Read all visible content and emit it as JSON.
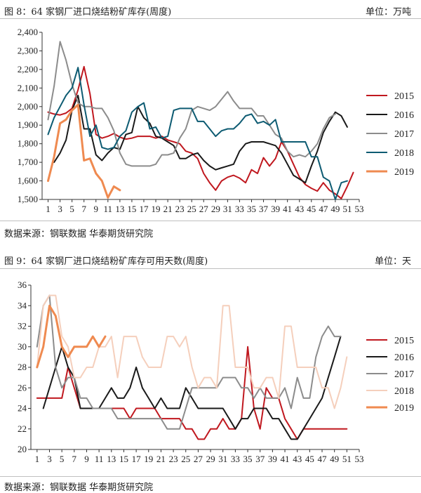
{
  "figure1": {
    "title": "图 8：64 家钢厂进口烧结粉矿库存(周度)",
    "unit": "单位：万吨",
    "source": "数据来源：钢联数据 华泰期货研究院"
  },
  "figure2": {
    "title": "图 9：64 家钢厂进口烧结粉矿库存可用天数(周度)",
    "unit": "单位：天",
    "source": "数据来源：钢联数据 华泰期货研究院"
  },
  "chart_data": [
    {
      "type": "line",
      "title": "64 家钢厂进口烧结粉矿库存(周度)",
      "x": [
        1,
        2,
        3,
        4,
        5,
        6,
        7,
        8,
        9,
        10,
        11,
        12,
        13,
        14,
        15,
        16,
        17,
        18,
        19,
        20,
        21,
        22,
        23,
        24,
        25,
        26,
        27,
        28,
        29,
        30,
        31,
        32,
        33,
        34,
        35,
        36,
        37,
        38,
        39,
        40,
        41,
        42,
        43,
        44,
        45,
        46,
        47,
        48,
        49,
        50,
        51,
        52
      ],
      "xticks": [
        1,
        3,
        5,
        7,
        9,
        11,
        13,
        15,
        17,
        19,
        21,
        23,
        25,
        27,
        29,
        31,
        33,
        35,
        37,
        39,
        41,
        43,
        45,
        47,
        49,
        51,
        53
      ],
      "xlim": [
        0,
        53
      ],
      "ylim": [
        1500,
        2400
      ],
      "yticks": [
        1500,
        1600,
        1700,
        1800,
        1900,
        2000,
        2100,
        2200,
        2300,
        2400
      ],
      "ytick_labels": [
        "1,500",
        "1,600",
        "1,700",
        "1,800",
        "1,900",
        "2,000",
        "2,100",
        "2,200",
        "2,300",
        "2,400"
      ],
      "legend_position": "right",
      "grid": false,
      "series": [
        {
          "name": "2015",
          "color": "#c0181f",
          "width": 2,
          "values": [
            1970,
            1960,
            1955,
            1965,
            1990,
            2090,
            2215,
            2070,
            1850,
            1830,
            1840,
            1855,
            1835,
            1825,
            1830,
            1840,
            1840,
            1840,
            1830,
            1840,
            1820,
            1810,
            1800,
            1760,
            1750,
            1720,
            1640,
            1590,
            1550,
            1600,
            1620,
            1630,
            1615,
            1590,
            1660,
            1640,
            1725,
            1680,
            1720,
            1810,
            1760,
            1690,
            1620,
            1580,
            1560,
            1545,
            1590,
            1550,
            1530,
            1505,
            1570,
            1645
          ]
        },
        {
          "name": "2016",
          "color": "#1a1a1a",
          "width": 2,
          "values": [
            null,
            1700,
            1750,
            1820,
            1980,
            2060,
            1880,
            1880,
            1740,
            1710,
            1750,
            1780,
            1770,
            1850,
            1860,
            2000,
            1940,
            1910,
            1840,
            1830,
            1810,
            1790,
            1720,
            1720,
            1740,
            1750,
            1710,
            1680,
            1660,
            1670,
            1680,
            1690,
            1760,
            1800,
            1810,
            1810,
            1810,
            1800,
            1790,
            1750,
            1690,
            1630,
            1610,
            1590,
            1680,
            1760,
            1860,
            1920,
            1970,
            1950,
            1890,
            null
          ]
        },
        {
          "name": "2017",
          "color": "#8c8c8c",
          "width": 2,
          "values": [
            1930,
            2110,
            2350,
            2250,
            2120,
            2020,
            2000,
            2000,
            1990,
            1990,
            1940,
            1870,
            1750,
            1690,
            1680,
            1680,
            1680,
            1680,
            1690,
            1740,
            1740,
            1750,
            1830,
            1880,
            1980,
            2000,
            1990,
            1980,
            2000,
            2040,
            2080,
            2030,
            1990,
            1990,
            1990,
            1950,
            1950,
            1900,
            1850,
            1830,
            1760,
            1730,
            1740,
            1730,
            1760,
            1800,
            1880,
            1940,
            1960,
            null,
            null,
            null
          ]
        },
        {
          "name": "2018",
          "color": "#0d5b72",
          "width": 2,
          "values": [
            1850,
            1940,
            2000,
            2060,
            2100,
            2210,
            2010,
            1840,
            1900,
            1780,
            1770,
            1780,
            1840,
            1870,
            1970,
            2000,
            2020,
            1880,
            1890,
            1830,
            1840,
            1980,
            1990,
            1990,
            1990,
            1920,
            1920,
            1880,
            1840,
            1870,
            1880,
            1880,
            1910,
            1950,
            1960,
            1910,
            1920,
            1900,
            1930,
            1810,
            1810,
            1810,
            1810,
            1810,
            1730,
            1730,
            1620,
            1600,
            1500,
            1590,
            1600,
            null
          ]
        },
        {
          "name": "2019",
          "color": "#ef8a50",
          "width": 3,
          "values": [
            1600,
            1730,
            1910,
            1930,
            1980,
            2010,
            1710,
            1720,
            1640,
            1600,
            1510,
            1570,
            1550,
            null,
            null,
            null,
            null,
            null,
            null,
            null,
            null,
            null,
            null,
            null,
            null,
            null,
            null,
            null,
            null,
            null,
            null,
            null,
            null,
            null,
            null,
            null,
            null,
            null,
            null,
            null,
            null,
            null,
            null,
            null,
            null,
            null,
            null,
            null,
            null,
            null,
            null,
            null
          ]
        }
      ]
    },
    {
      "type": "line",
      "title": "64 家钢厂进口烧结粉矿库存可用天数(周度)",
      "x": [
        1,
        2,
        3,
        4,
        5,
        6,
        7,
        8,
        9,
        10,
        11,
        12,
        13,
        14,
        15,
        16,
        17,
        18,
        19,
        20,
        21,
        22,
        23,
        24,
        25,
        26,
        27,
        28,
        29,
        30,
        31,
        32,
        33,
        34,
        35,
        36,
        37,
        38,
        39,
        40,
        41,
        42,
        43,
        44,
        45,
        46,
        47,
        48,
        49,
        50,
        51,
        52
      ],
      "xticks": [
        1,
        3,
        5,
        7,
        9,
        11,
        13,
        15,
        17,
        19,
        21,
        23,
        25,
        27,
        29,
        31,
        33,
        35,
        37,
        39,
        41,
        43,
        45,
        47,
        49,
        51,
        53
      ],
      "xlim": [
        0,
        53
      ],
      "ylim": [
        20,
        36
      ],
      "yticks": [
        20,
        22,
        24,
        26,
        28,
        30,
        32,
        34,
        36
      ],
      "ytick_labels": [
        "20",
        "22",
        "24",
        "26",
        "28",
        "30",
        "32",
        "34",
        "36"
      ],
      "legend_position": "right",
      "grid": false,
      "series": [
        {
          "name": "2015",
          "color": "#c0181f",
          "width": 2,
          "values": [
            25,
            25,
            25,
            25,
            25,
            28,
            26,
            24,
            24,
            24,
            24,
            24,
            24,
            24,
            24,
            23,
            24,
            24,
            24,
            24,
            23,
            23,
            23,
            23,
            22,
            22,
            21,
            21,
            22,
            22,
            23,
            22,
            22,
            23,
            30,
            24,
            22,
            26,
            25,
            25,
            23,
            22,
            21,
            22,
            22,
            22,
            22,
            22,
            22,
            22,
            22,
            null
          ]
        },
        {
          "name": "2016",
          "color": "#1a1a1a",
          "width": 2,
          "values": [
            null,
            24,
            26,
            28,
            30,
            28,
            27,
            24,
            24,
            24,
            24,
            25,
            26,
            25,
            25,
            26,
            28,
            26,
            25,
            24,
            25,
            24,
            24,
            24,
            26,
            25,
            24,
            24,
            24,
            24,
            24,
            23,
            22,
            23,
            23,
            24,
            24,
            24,
            23,
            23,
            22,
            21,
            21,
            22,
            23,
            24,
            25,
            27,
            29,
            31,
            null,
            null
          ]
        },
        {
          "name": "2017",
          "color": "#8c8c8c",
          "width": 2,
          "values": [
            30,
            34,
            35,
            28,
            26,
            27,
            27,
            25,
            25,
            24,
            24,
            24,
            24,
            23,
            23,
            23,
            23,
            23,
            23,
            23,
            23,
            22,
            22,
            22,
            24,
            26,
            26,
            26,
            26,
            26,
            27,
            27,
            27,
            26,
            26,
            25,
            26,
            25,
            25,
            25,
            26,
            24,
            27,
            25,
            25,
            29,
            31,
            32,
            31,
            31,
            null,
            null
          ]
        },
        {
          "name": "2018",
          "color": "#f5cfbc",
          "width": 2,
          "values": [
            28,
            34,
            35,
            35,
            31,
            30,
            27,
            27,
            28,
            28,
            30,
            30,
            31,
            27,
            31,
            31,
            31,
            29,
            28,
            28,
            28,
            31,
            31,
            30,
            31,
            28,
            26,
            27,
            27,
            26,
            34,
            34,
            28,
            28,
            28,
            26,
            26,
            27,
            27,
            25,
            32,
            32,
            28,
            28,
            28,
            28,
            26,
            26,
            24,
            26,
            29,
            null
          ]
        },
        {
          "name": "2019",
          "color": "#ef8a50",
          "width": 3,
          "values": [
            28,
            30,
            34,
            33,
            30,
            29,
            30,
            30,
            30,
            31,
            30,
            31,
            null,
            null,
            null,
            null,
            null,
            null,
            null,
            null,
            null,
            null,
            null,
            null,
            null,
            null,
            null,
            null,
            null,
            null,
            null,
            null,
            null,
            null,
            null,
            null,
            null,
            null,
            null,
            null,
            null,
            null,
            null,
            null,
            null,
            null,
            null,
            null,
            null,
            null,
            null,
            null
          ]
        }
      ]
    }
  ]
}
